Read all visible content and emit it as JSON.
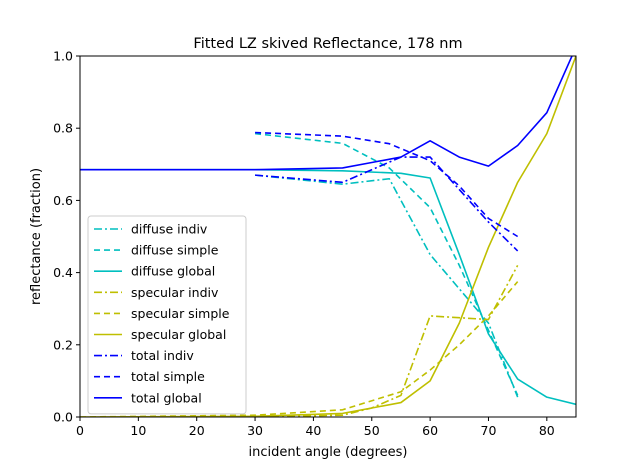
{
  "chart_data": {
    "type": "line",
    "title": "Fitted LZ skived Reflectance, 178 nm",
    "xlabel": "incident angle (degrees)",
    "ylabel": "reflectance (fraction)",
    "xlim": [
      0,
      85
    ],
    "ylim": [
      0,
      1.0
    ],
    "xticks": [
      "0",
      "10",
      "20",
      "30",
      "40",
      "50",
      "60",
      "70",
      "80"
    ],
    "yticks": [
      "0.0",
      "0.2",
      "0.4",
      "0.6",
      "0.8",
      "1.0"
    ],
    "grid": false,
    "legend_position": "lower-left",
    "series": [
      {
        "name": "diffuse indiv",
        "color": "#00bfbf",
        "dash": "dashdot",
        "x": [
          30,
          45,
          53,
          60,
          70,
          75
        ],
        "y": [
          0.67,
          0.645,
          0.66,
          0.45,
          0.26,
          0.055
        ]
      },
      {
        "name": "diffuse simple",
        "color": "#00bfbf",
        "dash": "dashed",
        "x": [
          30,
          45,
          53,
          60,
          65,
          70,
          75
        ],
        "y": [
          0.785,
          0.758,
          0.69,
          0.58,
          0.42,
          0.24,
          0.06
        ]
      },
      {
        "name": "diffuse global",
        "color": "#00bfbf",
        "dash": "solid",
        "x": [
          0,
          30,
          45,
          55,
          60,
          65,
          70,
          75,
          80,
          85
        ],
        "y": [
          0.685,
          0.685,
          0.682,
          0.675,
          0.662,
          0.45,
          0.23,
          0.105,
          0.055,
          0.035
        ]
      },
      {
        "name": "specular indiv",
        "color": "#bfbf00",
        "dash": "dashdot",
        "x": [
          30,
          45,
          50,
          55,
          60,
          65,
          70,
          75
        ],
        "y": [
          0.0,
          0.005,
          0.025,
          0.06,
          0.28,
          0.275,
          0.27,
          0.42
        ]
      },
      {
        "name": "specular simple",
        "color": "#bfbf00",
        "dash": "dashed",
        "x": [
          0,
          30,
          45,
          55,
          60,
          65,
          70,
          75
        ],
        "y": [
          0.0,
          0.005,
          0.02,
          0.07,
          0.13,
          0.2,
          0.28,
          0.375
        ]
      },
      {
        "name": "specular global",
        "color": "#bfbf00",
        "dash": "solid",
        "x": [
          0,
          30,
          45,
          50,
          55,
          60,
          65,
          70,
          75,
          80,
          85
        ],
        "y": [
          0.0,
          0.002,
          0.01,
          0.025,
          0.04,
          0.1,
          0.26,
          0.47,
          0.65,
          0.785,
          1.0
        ]
      },
      {
        "name": "total indiv",
        "color": "#0000ff",
        "dash": "dashdot",
        "x": [
          30,
          45,
          50,
          55,
          60,
          65,
          70,
          75
        ],
        "y": [
          0.67,
          0.65,
          0.685,
          0.72,
          0.72,
          0.63,
          0.54,
          0.46
        ]
      },
      {
        "name": "total simple",
        "color": "#0000ff",
        "dash": "dashed",
        "x": [
          30,
          45,
          53,
          60,
          65,
          70,
          75
        ],
        "y": [
          0.788,
          0.778,
          0.757,
          0.71,
          0.64,
          0.55,
          0.5
        ]
      },
      {
        "name": "total global",
        "color": "#0000ff",
        "dash": "solid",
        "x": [
          0,
          30,
          45,
          50,
          55,
          60,
          65,
          70,
          75,
          80,
          85
        ],
        "y": [
          0.685,
          0.685,
          0.69,
          0.705,
          0.72,
          0.765,
          0.72,
          0.695,
          0.752,
          0.843,
          1.025
        ]
      }
    ]
  }
}
